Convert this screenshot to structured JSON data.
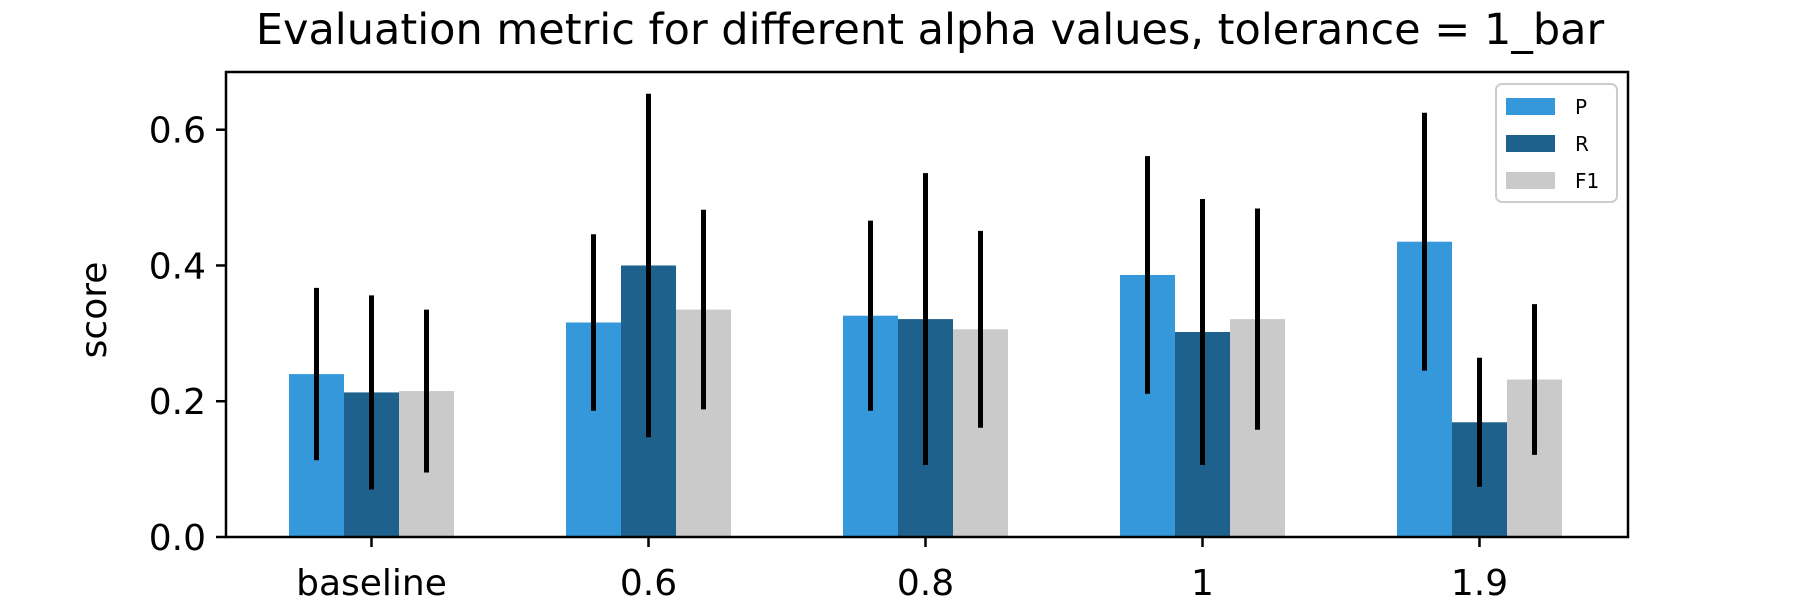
{
  "chart_data": {
    "type": "bar",
    "title": "Evaluation metric for different alpha values, tolerance = 1_bar",
    "xlabel": "",
    "ylabel": "score",
    "categories": [
      "baseline",
      "0.6",
      "0.8",
      "1",
      "1.9"
    ],
    "ylim": [
      0,
      0.685
    ],
    "yticks": [
      0.0,
      0.2,
      0.4,
      0.6
    ],
    "ytick_labels": [
      "0.0",
      "0.2",
      "0.4",
      "0.6"
    ],
    "grid": false,
    "legend_position": "top-right",
    "series": [
      {
        "name": "P",
        "color": "#3498db",
        "values": [
          0.24,
          0.316,
          0.326,
          0.386,
          0.435
        ],
        "error": [
          0.127,
          0.13,
          0.14,
          0.175,
          0.19
        ]
      },
      {
        "name": "R",
        "color": "#1f618d",
        "values": [
          0.213,
          0.4,
          0.321,
          0.302,
          0.169
        ],
        "error": [
          0.143,
          0.253,
          0.215,
          0.196,
          0.095
        ]
      },
      {
        "name": "F1",
        "color": "#cacaca",
        "values": [
          0.215,
          0.335,
          0.306,
          0.321,
          0.232
        ],
        "error": [
          0.12,
          0.147,
          0.145,
          0.163,
          0.111
        ]
      }
    ]
  }
}
